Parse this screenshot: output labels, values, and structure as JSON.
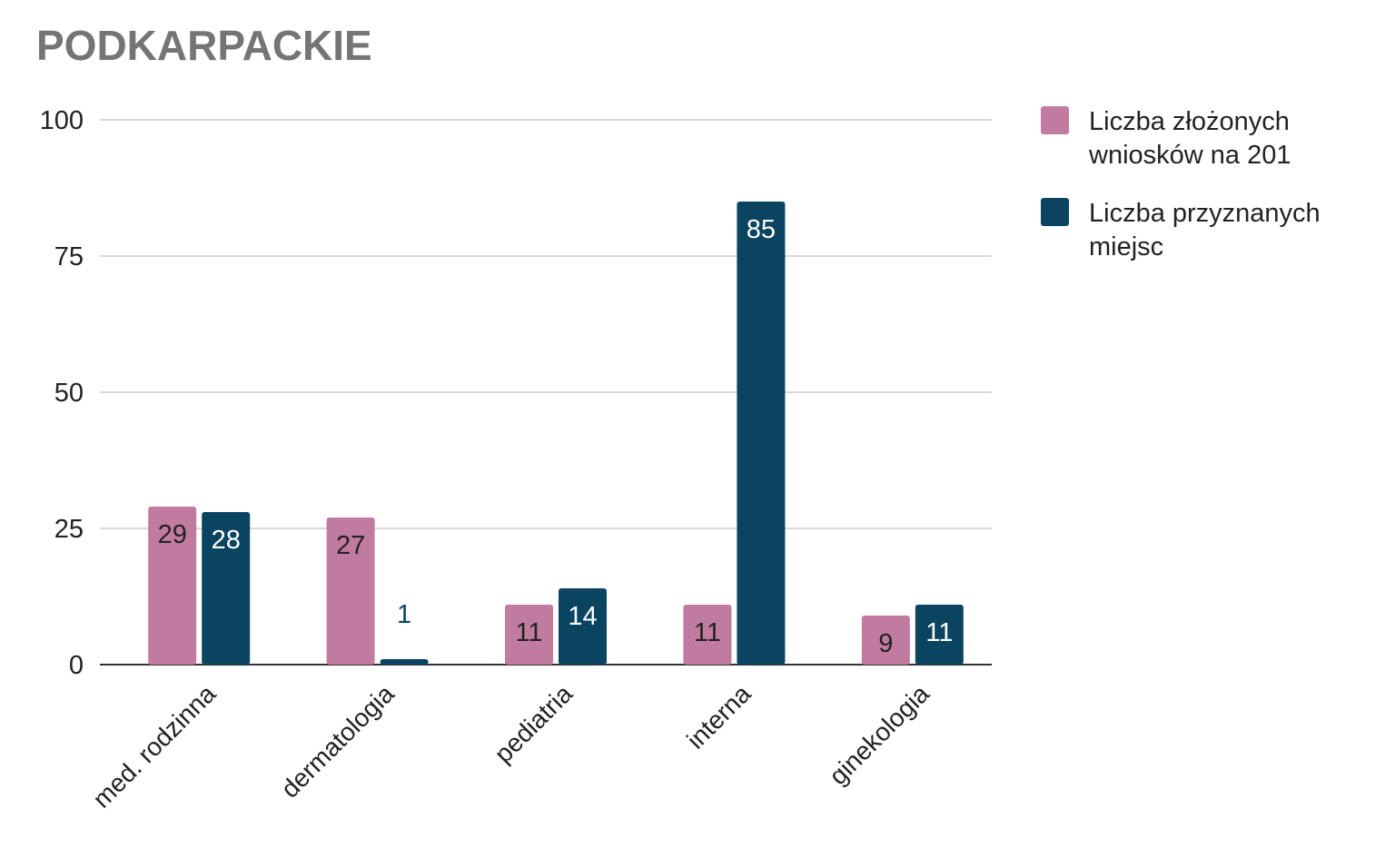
{
  "chart_data": {
    "type": "bar",
    "title": "PODKARPACKIE",
    "xlabel": "",
    "ylabel": "",
    "ylim": [
      0,
      100
    ],
    "yticks": [
      0,
      25,
      50,
      75,
      100
    ],
    "grid": true,
    "legend_position": "right",
    "categories": [
      "med. rodzinna",
      "dermatologia",
      "pediatria",
      "interna",
      "ginekologia"
    ],
    "series": [
      {
        "name": "Liczba złożonych wniosków na 201",
        "legend_lines": [
          "Liczba złożonych",
          "wniosków na 201"
        ],
        "color": "#c27ba0",
        "label_color": "#222222",
        "values": [
          29,
          27,
          11,
          11,
          9
        ]
      },
      {
        "name": "Liczba przyznanych miejsc",
        "legend_lines": [
          "Liczba przyznanych",
          "miejsc"
        ],
        "color": "#0b4461",
        "label_color": "#ffffff",
        "outside_label_color": "#0b4461",
        "values": [
          28,
          1,
          14,
          85,
          11
        ]
      }
    ]
  }
}
